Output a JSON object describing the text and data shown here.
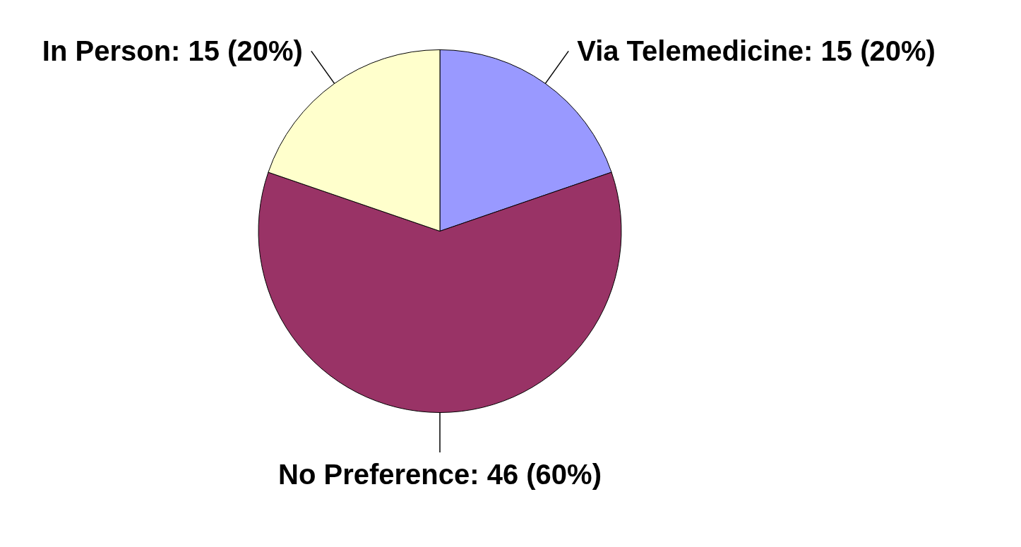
{
  "chart_data": {
    "type": "pie",
    "categories": [
      "Via Telemedicine",
      "No Preference",
      "In Person"
    ],
    "values": [
      15,
      46,
      15
    ],
    "value_labels": [
      "15 (20%)",
      "46 (60%)",
      "15 (20%)"
    ],
    "colors": [
      "#9999ff",
      "#993366",
      "#ffffcc"
    ],
    "legend": false
  }
}
